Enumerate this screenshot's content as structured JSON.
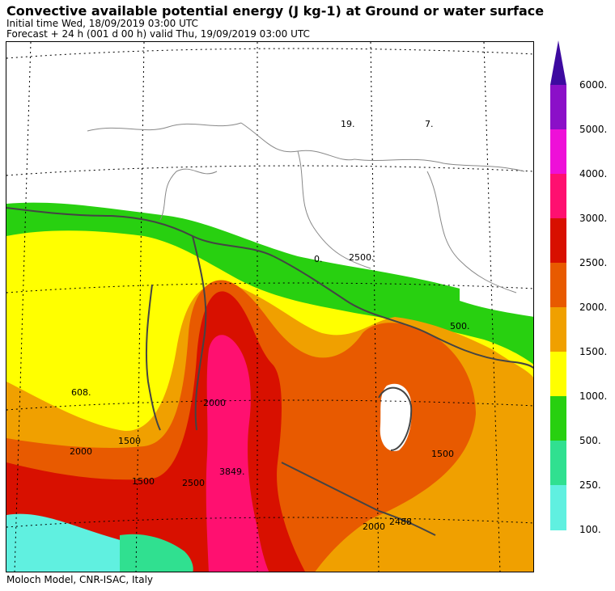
{
  "header": {
    "title": "Convective available potential energy (J kg-1) at Ground or water surface",
    "initial_time": "Initial time  Wed, 18/09/2019  03:00 UTC",
    "forecast": "Forecast  +  24 h  (001 d 00 h)  valid Thu, 19/09/2019 03:00 UTC"
  },
  "footer": {
    "credit": "Moloch Model, CNR-ISAC, Italy"
  },
  "colorbar": {
    "labels": [
      "6000.",
      "5000.",
      "4000.",
      "3000.",
      "2500.",
      "2000.",
      "1500.",
      "1000.",
      "500.",
      "250.",
      "100."
    ],
    "colors": [
      "#3d0aa0",
      "#8b10c8",
      "#ee10d8",
      "#ff1070",
      "#d81000",
      "#e85a00",
      "#f0a000",
      "#ffff00",
      "#28d010",
      "#30e090",
      "#60f0e0"
    ]
  },
  "map": {
    "contour_labels": [
      {
        "text": "19."
      },
      {
        "text": "7."
      },
      {
        "text": "0."
      },
      {
        "text": "2500."
      },
      {
        "text": "2000"
      },
      {
        "text": "1500"
      },
      {
        "text": "2000"
      },
      {
        "text": "1500"
      },
      {
        "text": "3849."
      },
      {
        "text": "2000"
      },
      {
        "text": "2488"
      },
      {
        "text": "2500"
      },
      {
        "text": "1500"
      },
      {
        "text": "608."
      },
      {
        "text": "500."
      }
    ]
  }
}
